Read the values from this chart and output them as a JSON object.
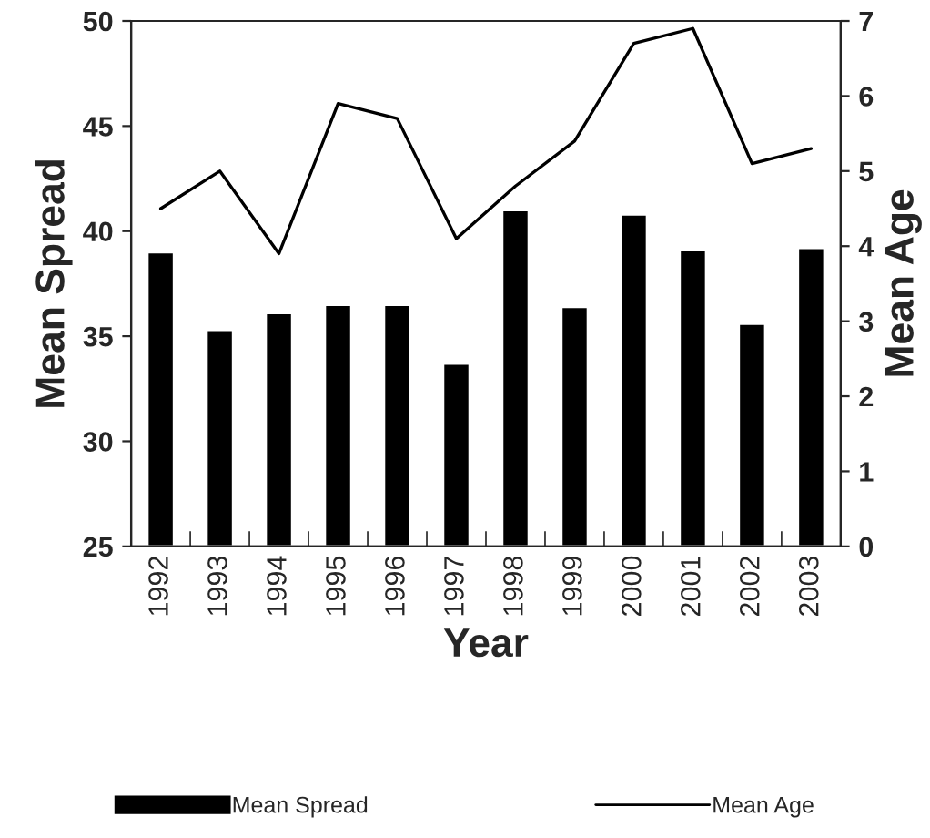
{
  "chart_data": {
    "type": "bar",
    "xlabel": "Year",
    "ylabel": "Mean Spread",
    "y2label": "Mean Age",
    "categories": [
      "1992",
      "1993",
      "1994",
      "1995",
      "1996",
      "1997",
      "1998",
      "1999",
      "2000",
      "2001",
      "2002",
      "2003"
    ],
    "series": [
      {
        "name": "Mean Spread",
        "color": "#000000",
        "values": [
          39.0,
          35.3,
          36.1,
          36.5,
          36.5,
          33.7,
          41.0,
          36.4,
          40.8,
          39.1,
          35.6,
          39.2
        ]
      },
      {
        "name": "Mean Age",
        "type": "line",
        "axis": "y2",
        "color": "#000000",
        "values": [
          4.5,
          5.0,
          3.9,
          5.9,
          5.7,
          4.1,
          4.8,
          5.4,
          6.7,
          6.9,
          5.1,
          5.3
        ]
      }
    ],
    "ylim": [
      25,
      50
    ],
    "yticks": [
      25,
      30,
      35,
      40,
      45,
      50
    ],
    "y2lim": [
      0,
      7
    ],
    "y2ticks": [
      0,
      1,
      2,
      3,
      4,
      5,
      6,
      7
    ],
    "legend": "bottom",
    "grid": false
  }
}
